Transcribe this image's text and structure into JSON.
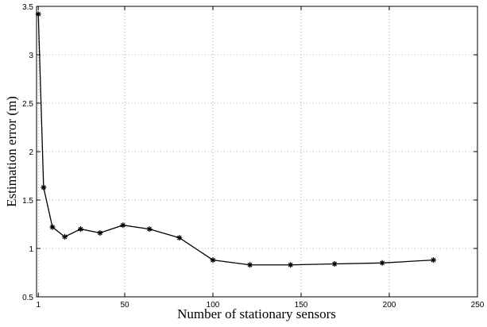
{
  "chart_data": {
    "type": "line",
    "x_label": "Number of stationary sensors",
    "y_label": "Estimation error (m)",
    "xlim": [
      0,
      250
    ],
    "xticks": [
      1,
      50,
      100,
      150,
      200,
      250
    ],
    "ylim": [
      0.5,
      3.5
    ],
    "yticks": [
      0.5,
      1,
      1.5,
      2,
      2.5,
      3,
      3.5
    ],
    "grid": true,
    "color": "#000000",
    "marker": "asterisk",
    "x": [
      1,
      4,
      9,
      16,
      25,
      36,
      49,
      64,
      81,
      100,
      121,
      144,
      169,
      196,
      225
    ],
    "values": [
      3.42,
      1.63,
      1.22,
      1.12,
      1.2,
      1.16,
      1.24,
      1.2,
      1.11,
      0.88,
      0.83,
      0.83,
      0.84,
      0.85,
      0.88
    ]
  }
}
